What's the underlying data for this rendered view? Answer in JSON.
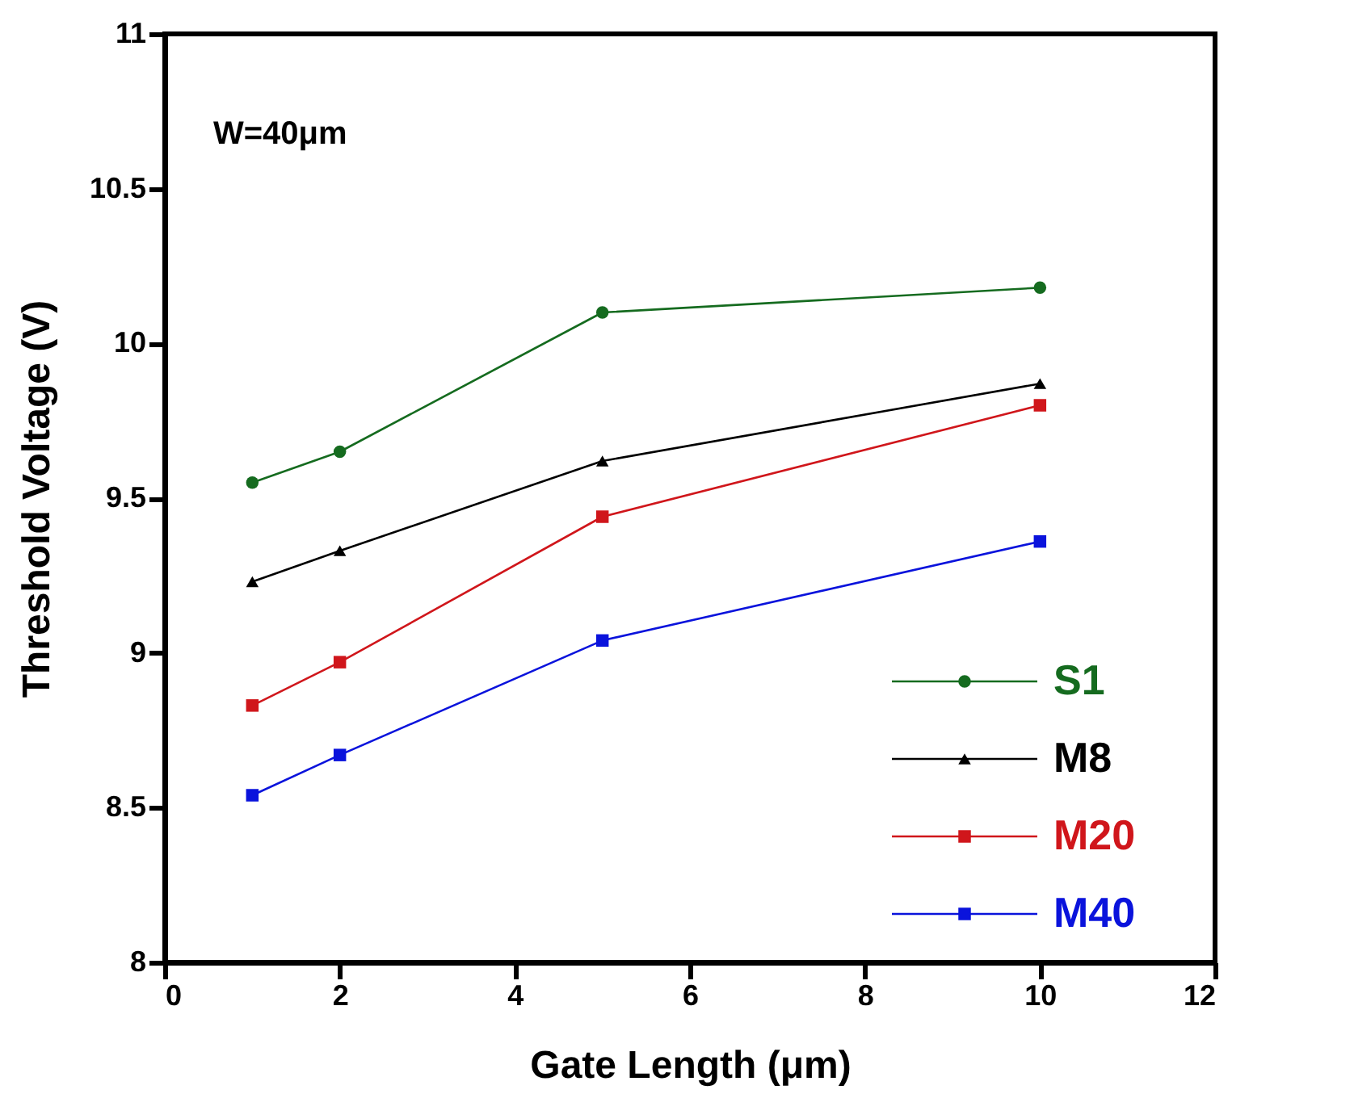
{
  "chart_data": {
    "type": "line",
    "xlabel": "Gate Length (μm)",
    "ylabel": "Threshold Voltage (V)",
    "x": [
      1,
      2,
      5,
      10
    ],
    "series": [
      {
        "name": "S1",
        "color": "#156b1f",
        "marker": "circle",
        "values": [
          9.55,
          9.65,
          10.1,
          10.18
        ]
      },
      {
        "name": "M8",
        "color": "#000000",
        "marker": "triangle",
        "values": [
          9.23,
          9.33,
          9.62,
          9.87
        ]
      },
      {
        "name": "M20",
        "color": "#d0161b",
        "marker": "square",
        "values": [
          8.83,
          8.97,
          9.44,
          9.8
        ]
      },
      {
        "name": "M40",
        "color": "#0a13dc",
        "marker": "square",
        "values": [
          8.54,
          8.67,
          9.04,
          9.36
        ]
      }
    ],
    "xlim": [
      0,
      12
    ],
    "xticks": [
      0,
      2,
      4,
      6,
      8,
      10,
      12
    ],
    "ylim": [
      8,
      11
    ],
    "yticks": [
      8,
      8.5,
      9,
      9.5,
      10,
      10.5,
      11
    ],
    "grid": false,
    "legend": "bottom right",
    "line_style": "solid",
    "annotations": [
      "W=40μm"
    ]
  }
}
